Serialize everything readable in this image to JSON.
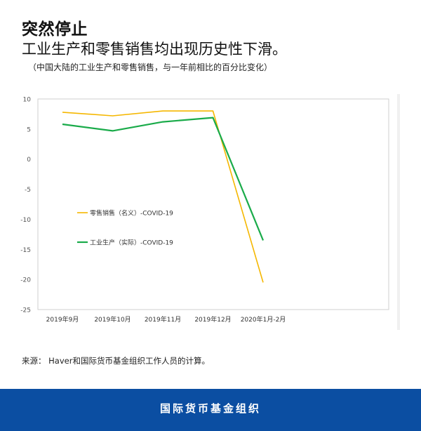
{
  "header": {
    "title_bold": "突然停止",
    "title_main": "工业生产和零售销售均出现历史性下滑。",
    "subtitle": "（中国大陆的工业生产和零售销售，与一年前相比的百分比变化）"
  },
  "source": "来源： Haver和国际货币基金组织工作人员的计算。",
  "footer": {
    "org_name": "国际货币基金组织"
  },
  "chart_data": {
    "type": "line",
    "categories": [
      "2019年9月",
      "2019年10月",
      "2019年11月",
      "2019年12月",
      "2020年1月-2月"
    ],
    "ylim": [
      -25,
      10
    ],
    "yticks": [
      10,
      5,
      0,
      -5,
      -10,
      -15,
      -20,
      -25
    ],
    "grid": false,
    "legend_placement": "center-left",
    "series": [
      {
        "name": "零售销售（名义）-COVID-19",
        "color": "#f5b700",
        "values": [
          7.8,
          7.2,
          8.0,
          8.0,
          -20.5
        ]
      },
      {
        "name": "工业生产（实际）-COVID-19",
        "color": "#1aab4a",
        "values": [
          5.8,
          4.7,
          6.2,
          6.9,
          -13.5
        ]
      }
    ]
  }
}
